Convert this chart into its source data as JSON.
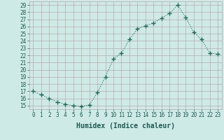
{
  "x": [
    0,
    1,
    2,
    3,
    4,
    5,
    6,
    7,
    8,
    9,
    10,
    11,
    12,
    13,
    14,
    15,
    16,
    17,
    18,
    19,
    20,
    21,
    22,
    23
  ],
  "y": [
    17,
    16.5,
    16,
    15.5,
    15.2,
    15.0,
    14.9,
    15.1,
    16.8,
    19.0,
    21.5,
    22.3,
    24.2,
    25.7,
    26.1,
    26.5,
    27.2,
    27.8,
    29.0,
    27.3,
    25.2,
    24.2,
    22.3,
    22.2
  ],
  "line_color": "#1a6b5a",
  "marker_color": "#1a6b5a",
  "bg_color": "#ceeae7",
  "grid_color": "#b8a8b0",
  "axis_color": "#555555",
  "xlabel": "Humidex (Indice chaleur)",
  "ylim": [
    14.5,
    29.5
  ],
  "yticks": [
    15,
    16,
    17,
    18,
    19,
    20,
    21,
    22,
    23,
    24,
    25,
    26,
    27,
    28,
    29
  ],
  "xticks": [
    0,
    1,
    2,
    3,
    4,
    5,
    6,
    7,
    8,
    9,
    10,
    11,
    12,
    13,
    14,
    15,
    16,
    17,
    18,
    19,
    20,
    21,
    22,
    23
  ],
  "font_color": "#1a5c50",
  "tick_fontsize": 5.5,
  "xlabel_fontsize": 7.0
}
